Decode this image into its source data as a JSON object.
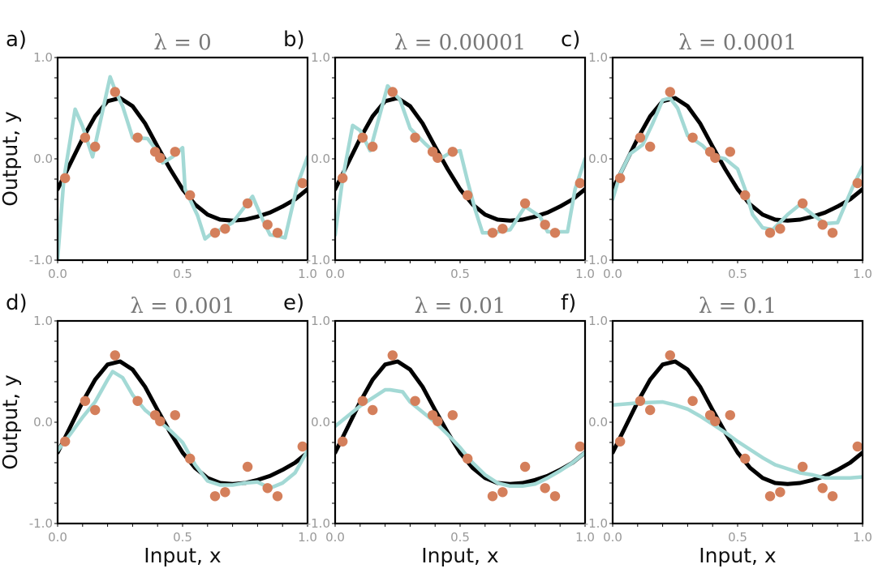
{
  "colors": {
    "true_function": "#000000",
    "fit": "#a3d9d5",
    "points": "#d47f5b",
    "frame": "#000000",
    "tick_label": "#999999",
    "title": "#777777"
  },
  "axis_labels": {
    "ylabel": "Output, y",
    "xlabel": "Input, x"
  },
  "chart_data": [
    {
      "type": "line",
      "panel_label": "a)",
      "title": "λ = 0",
      "xlim": [
        0,
        1
      ],
      "ylim": [
        -1,
        1
      ],
      "x_ticks": [
        "0.0",
        "0.5",
        "1.0"
      ],
      "y_ticks": [
        "-1.0",
        "0.0",
        "1.0"
      ],
      "ylabel": "Output, y",
      "xlabel": "",
      "fit": {
        "x": [
          0.0,
          0.025,
          0.07,
          0.1,
          0.14,
          0.21,
          0.23,
          0.26,
          0.3,
          0.36,
          0.4,
          0.42,
          0.46,
          0.5,
          0.51,
          0.56,
          0.59,
          0.61,
          0.65,
          0.7,
          0.78,
          0.82,
          0.85,
          0.88,
          0.91,
          0.96,
          1.0
        ],
        "y": [
          -0.99,
          -0.2,
          0.49,
          0.32,
          0.02,
          0.81,
          0.68,
          0.52,
          0.21,
          0.2,
          0.07,
          -0.04,
          0.02,
          0.11,
          -0.3,
          -0.56,
          -0.79,
          -0.75,
          -0.7,
          -0.63,
          -0.37,
          -0.6,
          -0.75,
          -0.76,
          -0.78,
          -0.25,
          0.02
        ]
      }
    },
    {
      "type": "line",
      "panel_label": "b)",
      "title": "λ = 0.00001",
      "xlim": [
        0,
        1
      ],
      "ylim": [
        -1,
        1
      ],
      "x_ticks": [
        "0.0",
        "0.5",
        "1.0"
      ],
      "y_ticks": [
        "-1.0",
        "0.0",
        "1.0"
      ],
      "ylabel": "",
      "xlabel": "",
      "fit": {
        "x": [
          0.0,
          0.03,
          0.07,
          0.1,
          0.14,
          0.21,
          0.26,
          0.3,
          0.36,
          0.4,
          0.42,
          0.46,
          0.5,
          0.53,
          0.56,
          0.59,
          0.63,
          0.7,
          0.76,
          0.82,
          0.85,
          0.9,
          0.93,
          0.96,
          1.0
        ],
        "y": [
          -0.75,
          -0.2,
          0.33,
          0.28,
          0.08,
          0.72,
          0.58,
          0.3,
          0.15,
          0.06,
          0.0,
          0.06,
          0.08,
          -0.22,
          -0.5,
          -0.73,
          -0.73,
          -0.7,
          -0.47,
          -0.57,
          -0.72,
          -0.72,
          -0.72,
          -0.3,
          0.0
        ]
      }
    },
    {
      "type": "line",
      "panel_label": "c)",
      "title": "λ = 0.0001",
      "xlim": [
        0,
        1
      ],
      "ylim": [
        -1,
        1
      ],
      "x_ticks": [
        "0.0",
        "0.5",
        "1.0"
      ],
      "y_ticks": [
        "-1.0",
        "0.0",
        "1.0"
      ],
      "ylabel": "",
      "xlabel": "",
      "fit": {
        "x": [
          0.0,
          0.03,
          0.07,
          0.12,
          0.16,
          0.2,
          0.23,
          0.26,
          0.3,
          0.36,
          0.4,
          0.45,
          0.5,
          0.53,
          0.56,
          0.6,
          0.64,
          0.7,
          0.75,
          0.8,
          0.85,
          0.9,
          0.96,
          1.0
        ],
        "y": [
          -0.4,
          -0.15,
          0.05,
          0.14,
          0.35,
          0.58,
          0.6,
          0.5,
          0.23,
          0.13,
          0.03,
          0.0,
          -0.1,
          -0.3,
          -0.55,
          -0.68,
          -0.7,
          -0.55,
          -0.45,
          -0.55,
          -0.64,
          -0.63,
          -0.28,
          -0.08
        ]
      }
    },
    {
      "type": "line",
      "panel_label": "d)",
      "title": "λ = 0.001",
      "xlim": [
        0,
        1
      ],
      "ylim": [
        -1,
        1
      ],
      "x_ticks": [
        "0.0",
        "0.5",
        "1.0"
      ],
      "y_ticks": [
        "-1.0",
        "0.0",
        "1.0"
      ],
      "ylabel": "Output, y",
      "xlabel": "Input, x",
      "fit": {
        "x": [
          0.0,
          0.05,
          0.1,
          0.15,
          0.2,
          0.22,
          0.26,
          0.3,
          0.35,
          0.4,
          0.45,
          0.5,
          0.55,
          0.6,
          0.65,
          0.7,
          0.75,
          0.8,
          0.85,
          0.9,
          0.95,
          1.0
        ],
        "y": [
          -0.28,
          -0.12,
          0.05,
          0.2,
          0.42,
          0.5,
          0.44,
          0.27,
          0.12,
          0.02,
          -0.08,
          -0.2,
          -0.42,
          -0.58,
          -0.62,
          -0.62,
          -0.6,
          -0.59,
          -0.65,
          -0.6,
          -0.5,
          -0.28
        ]
      }
    },
    {
      "type": "line",
      "panel_label": "e)",
      "title": "λ = 0.01",
      "xlim": [
        0,
        1
      ],
      "ylim": [
        -1,
        1
      ],
      "x_ticks": [
        "0.0",
        "0.5",
        "1.0"
      ],
      "y_ticks": [
        "-1.0",
        "0.0",
        "1.0"
      ],
      "ylabel": "",
      "xlabel": "Input, x",
      "fit": {
        "x": [
          0.0,
          0.05,
          0.1,
          0.15,
          0.2,
          0.22,
          0.27,
          0.3,
          0.35,
          0.4,
          0.45,
          0.5,
          0.55,
          0.6,
          0.65,
          0.7,
          0.75,
          0.8,
          0.85,
          0.9,
          0.95,
          1.0
        ],
        "y": [
          -0.04,
          0.06,
          0.16,
          0.24,
          0.32,
          0.32,
          0.3,
          0.2,
          0.1,
          0.0,
          -0.12,
          -0.25,
          -0.4,
          -0.52,
          -0.6,
          -0.63,
          -0.63,
          -0.61,
          -0.55,
          -0.48,
          -0.4,
          -0.3
        ]
      }
    },
    {
      "type": "line",
      "panel_label": "f)",
      "title": "λ = 0.1",
      "xlim": [
        0,
        1
      ],
      "ylim": [
        -1,
        1
      ],
      "x_ticks": [
        "0.0",
        "0.5",
        "1.0"
      ],
      "y_ticks": [
        "-1.0",
        "0.0",
        "1.0"
      ],
      "ylabel": "",
      "xlabel": "Input, x",
      "fit": {
        "x": [
          0.0,
          0.1,
          0.2,
          0.25,
          0.3,
          0.35,
          0.4,
          0.45,
          0.5,
          0.55,
          0.6,
          0.65,
          0.7,
          0.75,
          0.8,
          0.85,
          0.9,
          0.95,
          1.0
        ],
        "y": [
          0.17,
          0.19,
          0.2,
          0.17,
          0.13,
          0.06,
          -0.02,
          -0.1,
          -0.19,
          -0.27,
          -0.35,
          -0.42,
          -0.46,
          -0.5,
          -0.52,
          -0.55,
          -0.55,
          -0.55,
          -0.54
        ]
      }
    }
  ],
  "shared_data": {
    "true_function": {
      "x": [
        0.0,
        0.05,
        0.1,
        0.15,
        0.2,
        0.25,
        0.3,
        0.35,
        0.4,
        0.45,
        0.5,
        0.55,
        0.6,
        0.65,
        0.7,
        0.75,
        0.8,
        0.85,
        0.9,
        0.95,
        1.0
      ],
      "y": [
        -0.3,
        -0.05,
        0.2,
        0.42,
        0.57,
        0.6,
        0.52,
        0.35,
        0.12,
        -0.1,
        -0.3,
        -0.45,
        -0.55,
        -0.6,
        -0.61,
        -0.6,
        -0.57,
        -0.53,
        -0.47,
        -0.4,
        -0.3
      ]
    },
    "points": {
      "x": [
        0.03,
        0.11,
        0.15,
        0.23,
        0.32,
        0.39,
        0.41,
        0.47,
        0.53,
        0.63,
        0.67,
        0.76,
        0.84,
        0.88,
        0.98
      ],
      "y": [
        -0.19,
        0.21,
        0.12,
        0.66,
        0.21,
        0.07,
        0.01,
        0.07,
        -0.36,
        -0.73,
        -0.69,
        -0.44,
        -0.65,
        -0.73,
        -0.24
      ]
    }
  }
}
